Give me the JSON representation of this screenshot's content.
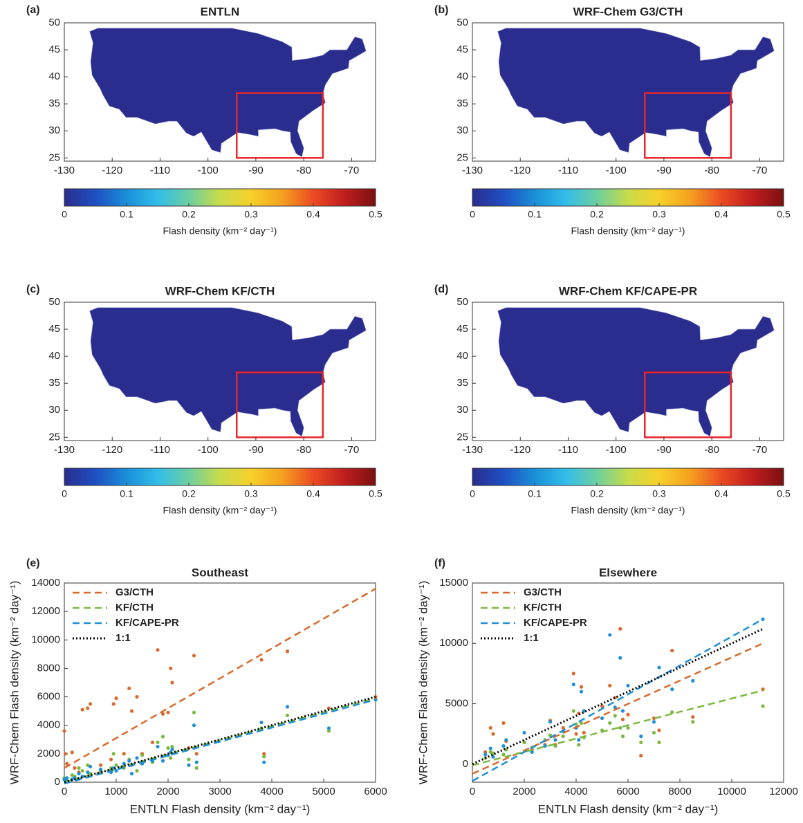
{
  "chart_data": [
    {
      "type": "map",
      "panel": "(a)",
      "title": "ENTLN",
      "xlim": [
        -130,
        -65
      ],
      "xticks": [
        -130,
        -120,
        -110,
        -100,
        -90,
        -80,
        -70
      ],
      "ylim": [
        24.4,
        50
      ],
      "yticks": [
        25,
        30,
        35,
        40,
        45,
        50
      ],
      "colorbar": {
        "lim": [
          0,
          0.5
        ],
        "ticks": [
          0,
          0.1,
          0.2,
          0.3,
          0.4,
          0.5
        ],
        "label": "Flash density (km⁻² day⁻¹)",
        "colors": [
          "#2a2d8e",
          "#1f4fc2",
          "#1a8fd8",
          "#32bde9",
          "#6ccfa0",
          "#c8dc4a",
          "#f7d02a",
          "#f4a11f",
          "#ec4a23",
          "#c01e1e",
          "#7a1010"
        ]
      }
    },
    {
      "type": "map",
      "panel": "(b)",
      "title": "WRF-Chem G3/CTH",
      "xlim": [
        -130,
        -65
      ],
      "xticks": [
        -130,
        -120,
        -110,
        -100,
        -90,
        -80,
        -70
      ],
      "ylim": [
        24.4,
        50
      ],
      "yticks": [
        25,
        30,
        35,
        40,
        45,
        50
      ],
      "colorbar": {
        "lim": [
          0,
          0.5
        ],
        "ticks": [
          0,
          0.1,
          0.2,
          0.3,
          0.4,
          0.5
        ],
        "label": "Flash density (km⁻² day⁻¹)",
        "colors": [
          "#2a2d8e",
          "#1f4fc2",
          "#1a8fd8",
          "#32bde9",
          "#6ccfa0",
          "#c8dc4a",
          "#f7d02a",
          "#f4a11f",
          "#ec4a23",
          "#c01e1e",
          "#7a1010"
        ]
      }
    },
    {
      "type": "map",
      "panel": "(c)",
      "title": "WRF-Chem KF/CTH",
      "xlim": [
        -130,
        -65
      ],
      "xticks": [
        -130,
        -120,
        -110,
        -100,
        -90,
        -80,
        -70
      ],
      "ylim": [
        24.4,
        50
      ],
      "yticks": [
        25,
        30,
        35,
        40,
        45,
        50
      ],
      "colorbar": {
        "lim": [
          0,
          0.5
        ],
        "ticks": [
          0,
          0.1,
          0.2,
          0.3,
          0.4,
          0.5
        ],
        "label": "Flash density (km⁻² day⁻¹)",
        "colors": [
          "#2a2d8e",
          "#1f4fc2",
          "#1a8fd8",
          "#32bde9",
          "#6ccfa0",
          "#c8dc4a",
          "#f7d02a",
          "#f4a11f",
          "#ec4a23",
          "#c01e1e",
          "#7a1010"
        ]
      }
    },
    {
      "type": "map",
      "panel": "(d)",
      "title": "WRF-Chem KF/CAPE-PR",
      "xlim": [
        -130,
        -65
      ],
      "xticks": [
        -130,
        -120,
        -110,
        -100,
        -90,
        -80,
        -70
      ],
      "ylim": [
        24.4,
        50
      ],
      "yticks": [
        25,
        30,
        35,
        40,
        45,
        50
      ],
      "colorbar": {
        "lim": [
          0,
          0.5
        ],
        "ticks": [
          0,
          0.1,
          0.2,
          0.3,
          0.4,
          0.5
        ],
        "label": "Flash density (km⁻² day⁻¹)",
        "colors": [
          "#2a2d8e",
          "#1f4fc2",
          "#1a8fd8",
          "#32bde9",
          "#6ccfa0",
          "#c8dc4a",
          "#f7d02a",
          "#f4a11f",
          "#ec4a23",
          "#c01e1e",
          "#7a1010"
        ]
      }
    },
    {
      "type": "scatter",
      "panel": "(e)",
      "title": "Southeast",
      "xlabel": "ENTLN Flash density (km⁻² day⁻¹)",
      "ylabel": "WRF-Chem Flash density (km⁻² day⁻¹)",
      "xlim": [
        0,
        6000
      ],
      "xticks": [
        0,
        1000,
        2000,
        3000,
        4000,
        5000,
        6000
      ],
      "ylim": [
        0,
        14000
      ],
      "yticks": [
        0,
        2000,
        4000,
        6000,
        8000,
        10000,
        12000,
        14000
      ],
      "legend": "upper left",
      "x": [
        0,
        20,
        50,
        150,
        200,
        280,
        350,
        450,
        500,
        700,
        900,
        950,
        1000,
        1150,
        1250,
        1300,
        1400,
        1500,
        1700,
        1800,
        1900,
        2000,
        2050,
        2080,
        2400,
        2500,
        2550,
        3800,
        3850,
        4300,
        5100,
        6000
      ],
      "points": [
        {
          "color": "#d9692b",
          "values": [
            3600,
            2000,
            1300,
            2100,
            1000,
            700,
            5100,
            5200,
            5500,
            1200,
            1600,
            5500,
            5900,
            2000,
            6600,
            5000,
            6000,
            2000,
            2800,
            9300,
            4800,
            4900,
            8000,
            7000,
            2400,
            8900,
            2000,
            8600,
            2000,
            9200,
            5200,
            6000
          ]
        },
        {
          "color": "#7ab840",
          "values": [
            300,
            200,
            100,
            500,
            400,
            1000,
            800,
            1200,
            600,
            800,
            1000,
            2000,
            1200,
            1000,
            1600,
            1200,
            800,
            1900,
            1400,
            2800,
            3200,
            2400,
            1700,
            2500,
            1600,
            4900,
            1000,
            3800,
            1800,
            4700,
            3600,
            5800
          ]
        },
        {
          "color": "#1f8fd6",
          "values": [
            200,
            100,
            300,
            200,
            300,
            600,
            400,
            700,
            1100,
            900,
            700,
            1000,
            800,
            1300,
            1500,
            600,
            1700,
            1300,
            1500,
            2500,
            1500,
            1900,
            2100,
            2300,
            1200,
            4000,
            1400,
            4200,
            1400,
            5300,
            3800,
            5800
          ]
        }
      ],
      "series": [
        {
          "name": "G3/CTH",
          "color": "#d9692b",
          "style": "dashed",
          "x": [
            0,
            6000
          ],
          "values": [
            1000,
            13600
          ]
        },
        {
          "name": "KF/CTH",
          "color": "#7ab840",
          "style": "dashed",
          "x": [
            0,
            6000
          ],
          "values": [
            0,
            5900
          ]
        },
        {
          "name": "KF/CAPE-PR",
          "color": "#1f8fd6",
          "style": "dashed",
          "x": [
            0,
            6000
          ],
          "values": [
            -100,
            5800
          ]
        },
        {
          "name": "1:1",
          "color": "#000000",
          "style": "dotted",
          "x": [
            0,
            6000
          ],
          "values": [
            0,
            6000
          ]
        }
      ]
    },
    {
      "type": "scatter",
      "panel": "(f)",
      "title": "Elsewhere",
      "xlabel": "ENTLN Flash density (km⁻² day⁻¹)",
      "ylabel": "WRF-Chem Flash density (km⁻² day⁻¹)",
      "xlim": [
        0,
        12000
      ],
      "xticks": [
        0,
        2000,
        4000,
        6000,
        8000,
        10000,
        12000
      ],
      "ylim": [
        -1500,
        15000
      ],
      "yticks": [
        0,
        5000,
        10000,
        15000
      ],
      "legend": "upper left",
      "x": [
        500,
        700,
        800,
        1200,
        1300,
        2000,
        2300,
        2800,
        3000,
        3200,
        3500,
        3900,
        4000,
        4100,
        4200,
        4300,
        5000,
        5300,
        5500,
        5700,
        5800,
        6000,
        6500,
        7000,
        7200,
        7700,
        8500,
        11200
      ],
      "points": [
        {
          "color": "#d9692b",
          "values": [
            1000,
            3000,
            2500,
            3400,
            1900,
            1800,
            1200,
            1600,
            3600,
            1600,
            3000,
            7500,
            2500,
            4200,
            6400,
            2600,
            4800,
            6500,
            5500,
            11200,
            3700,
            4100,
            700,
            3800,
            2800,
            9400,
            3900,
            6200
          ]
        },
        {
          "color": "#7ab840",
          "values": [
            500,
            1000,
            900,
            800,
            1200,
            1800,
            1400,
            2000,
            2400,
            1500,
            2300,
            4400,
            3300,
            1600,
            3400,
            2200,
            2800,
            3400,
            4000,
            3000,
            2300,
            3000,
            1800,
            2600,
            1800,
            4300,
            3500,
            4800
          ]
        },
        {
          "color": "#1f8fd6",
          "values": [
            800,
            1300,
            600,
            1500,
            2000,
            2600,
            1000,
            1500,
            3500,
            2000,
            2700,
            6600,
            3000,
            2000,
            6000,
            4400,
            3800,
            10700,
            4700,
            8800,
            4400,
            6500,
            2300,
            3500,
            8000,
            6200,
            6900,
            12000
          ]
        }
      ],
      "series": [
        {
          "name": "G3/CTH",
          "color": "#d9692b",
          "style": "dashed",
          "x": [
            0,
            11200
          ],
          "values": [
            -800,
            10000
          ]
        },
        {
          "name": "KF/CTH",
          "color": "#7ab840",
          "style": "dashed",
          "x": [
            0,
            11200
          ],
          "values": [
            -100,
            6100
          ]
        },
        {
          "name": "KF/CAPE-PR",
          "color": "#1f8fd6",
          "style": "dashed",
          "x": [
            0,
            11200
          ],
          "values": [
            -1400,
            12000
          ]
        },
        {
          "name": "1:1",
          "color": "#000000",
          "style": "dotted",
          "x": [
            0,
            11200
          ],
          "values": [
            0,
            11200
          ]
        }
      ]
    }
  ]
}
